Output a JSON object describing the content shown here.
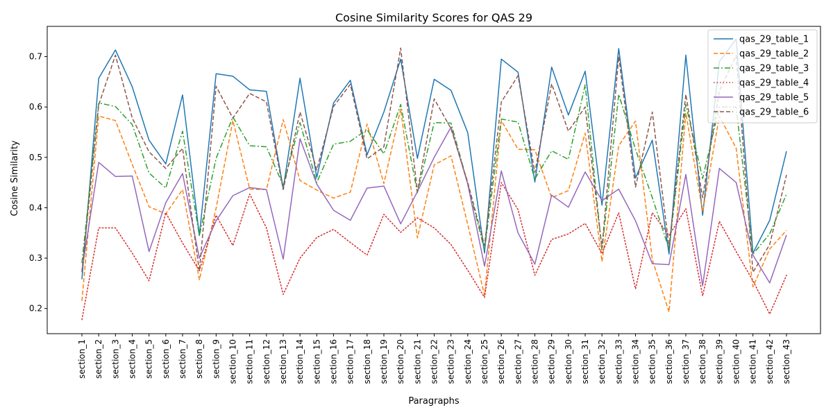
{
  "chart_data": {
    "type": "line",
    "title": "Cosine Similarity Scores for QAS 29",
    "xlabel": "Paragraphs",
    "ylabel": "Cosine Similarity",
    "ylim": [
      0.15,
      0.76
    ],
    "yticks": [
      0.2,
      0.3,
      0.4,
      0.5,
      0.6,
      0.7
    ],
    "grid": false,
    "legend_position": "top-right",
    "categories": [
      "section_1",
      "section_2",
      "section_3",
      "section_4",
      "section_5",
      "section_6",
      "section_7",
      "section_8",
      "section_9",
      "section_10",
      "section_11",
      "section_12",
      "section_13",
      "section_14",
      "section_15",
      "section_16",
      "section_17",
      "section_18",
      "section_19",
      "section_20",
      "section_21",
      "section_22",
      "section_23",
      "section_24",
      "section_25",
      "section_26",
      "section_27",
      "section_28",
      "section_29",
      "section_30",
      "section_31",
      "section_32",
      "section_33",
      "section_34",
      "section_35",
      "section_36",
      "section_37",
      "section_38",
      "section_39",
      "section_40",
      "section_41",
      "section_42",
      "section_43"
    ],
    "series": [
      {
        "name": "qas_29_table_1",
        "color": "#1f77b4",
        "dash": "solid",
        "values": [
          0.258,
          0.657,
          0.713,
          0.64,
          0.534,
          0.487,
          0.624,
          0.345,
          0.666,
          0.661,
          0.634,
          0.631,
          0.438,
          0.657,
          0.46,
          0.608,
          0.653,
          0.505,
          0.59,
          0.695,
          0.498,
          0.655,
          0.633,
          0.549,
          0.31,
          0.695,
          0.669,
          0.451,
          0.679,
          0.584,
          0.671,
          0.405,
          0.716,
          0.459,
          0.534,
          0.308,
          0.703,
          0.385,
          0.69,
          0.735,
          0.31,
          0.375,
          0.512
        ]
      },
      {
        "name": "qas_29_table_2",
        "color": "#ff7f0e",
        "dash": "dashed",
        "values": [
          0.215,
          0.582,
          0.573,
          0.486,
          0.402,
          0.388,
          0.436,
          0.257,
          0.399,
          0.573,
          0.437,
          0.436,
          0.575,
          0.454,
          0.435,
          0.419,
          0.431,
          0.566,
          0.448,
          0.596,
          0.34,
          0.485,
          0.503,
          0.367,
          0.226,
          0.573,
          0.516,
          0.515,
          0.42,
          0.434,
          0.548,
          0.293,
          0.523,
          0.572,
          0.297,
          0.193,
          0.588,
          0.392,
          0.582,
          0.518,
          0.243,
          0.318,
          0.355
        ]
      },
      {
        "name": "qas_29_table_3",
        "color": "#2ca02c",
        "dash": "dashdot",
        "values": [
          0.29,
          0.608,
          0.601,
          0.565,
          0.469,
          0.439,
          0.552,
          0.344,
          0.498,
          0.58,
          0.523,
          0.521,
          0.444,
          0.569,
          0.45,
          0.526,
          0.532,
          0.555,
          0.507,
          0.605,
          0.43,
          0.569,
          0.568,
          0.448,
          0.316,
          0.576,
          0.57,
          0.457,
          0.513,
          0.496,
          0.644,
          0.316,
          0.625,
          0.516,
          0.42,
          0.318,
          0.605,
          0.458,
          0.6,
          0.6,
          0.308,
          0.348,
          0.427
        ]
      },
      {
        "name": "qas_29_table_4",
        "color": "#d62728",
        "dash": "dotted",
        "values": [
          0.178,
          0.36,
          0.36,
          0.31,
          0.255,
          0.39,
          0.33,
          0.275,
          0.385,
          0.325,
          0.427,
          0.36,
          0.228,
          0.3,
          0.341,
          0.357,
          0.331,
          0.306,
          0.387,
          0.351,
          0.38,
          0.36,
          0.327,
          0.276,
          0.222,
          0.45,
          0.396,
          0.266,
          0.337,
          0.348,
          0.369,
          0.309,
          0.39,
          0.239,
          0.39,
          0.345,
          0.398,
          0.225,
          0.373,
          0.313,
          0.255,
          0.189,
          0.266
        ]
      },
      {
        "name": "qas_29_table_5",
        "color": "#9467bd",
        "dash": "solid",
        "values": [
          0.275,
          0.49,
          0.462,
          0.463,
          0.313,
          0.41,
          0.468,
          0.3,
          0.374,
          0.424,
          0.44,
          0.436,
          0.298,
          0.537,
          0.447,
          0.395,
          0.375,
          0.439,
          0.443,
          0.368,
          0.432,
          0.5,
          0.56,
          0.447,
          0.284,
          0.473,
          0.35,
          0.288,
          0.425,
          0.401,
          0.471,
          0.414,
          0.437,
          0.374,
          0.289,
          0.287,
          0.466,
          0.245,
          0.478,
          0.45,
          0.306,
          0.251,
          0.346
        ]
      },
      {
        "name": "qas_29_table_6",
        "color": "#8c564b",
        "dash": "dashed",
        "values": [
          0.272,
          0.604,
          0.703,
          0.578,
          0.511,
          0.478,
          0.518,
          0.274,
          0.641,
          0.578,
          0.627,
          0.61,
          0.436,
          0.59,
          0.475,
          0.601,
          0.645,
          0.497,
          0.521,
          0.717,
          0.432,
          0.616,
          0.557,
          0.45,
          0.325,
          0.61,
          0.662,
          0.47,
          0.646,
          0.552,
          0.6,
          0.32,
          0.7,
          0.441,
          0.59,
          0.322,
          0.625,
          0.42,
          0.632,
          0.702,
          0.272,
          0.327,
          0.465
        ]
      }
    ]
  }
}
